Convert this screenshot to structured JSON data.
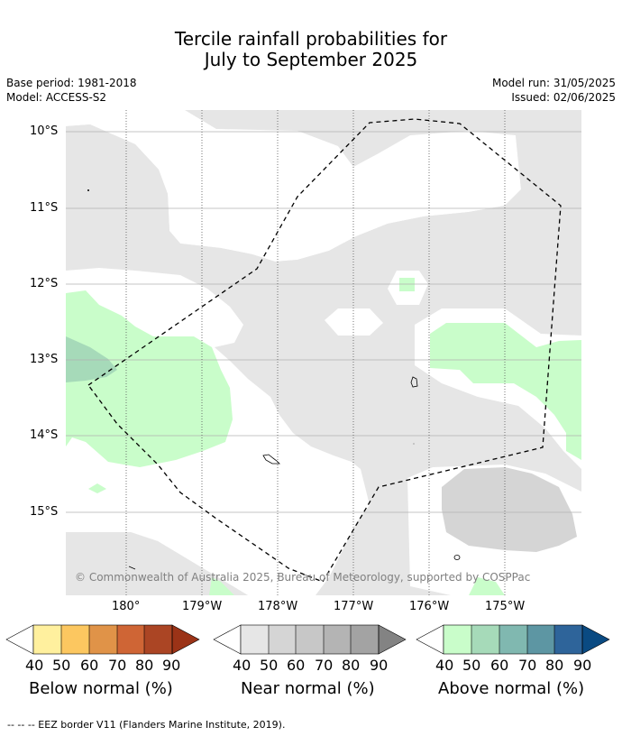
{
  "header": {
    "title_line1": "Tercile rainfall probabilities for",
    "title_line2": "July to September 2025",
    "base_period": "Base period: 1981-2018",
    "model": "Model: ACCESS-S2",
    "model_run": "Model run: 31/05/2025",
    "issued": "Issued: 02/06/2025"
  },
  "map": {
    "lat_labels": [
      "10°S",
      "11°S",
      "12°S",
      "13°S",
      "14°S",
      "15°S"
    ],
    "lon_labels": [
      "180°",
      "179°W",
      "178°W",
      "177°W",
      "176°W",
      "175°W"
    ],
    "copyright": "© Commonwealth of Australia 2025, Bureau of Meteorology, supported by COSPPac"
  },
  "legends": [
    {
      "caption": "Below normal (%)",
      "ticks": [
        "40",
        "50",
        "60",
        "70",
        "80",
        "90"
      ],
      "colors": [
        "#fff09e",
        "#fcc760",
        "#e09348",
        "#cf6535",
        "#ab4524",
        "#9b3317"
      ]
    },
    {
      "caption": "Near normal (%)",
      "ticks": [
        "40",
        "50",
        "60",
        "70",
        "80",
        "90"
      ],
      "colors": [
        "#e6e6e6",
        "#d5d5d5",
        "#c7c7c7",
        "#b4b4b4",
        "#a3a3a3",
        "#838383"
      ]
    },
    {
      "caption": "Above normal (%)",
      "ticks": [
        "40",
        "50",
        "60",
        "70",
        "80",
        "90"
      ],
      "colors": [
        "#c9fdca",
        "#a6dab9",
        "#80b8b0",
        "#5d96a3",
        "#2e649a",
        "#0a4a82"
      ]
    }
  ],
  "footer": "--  --  -- EEZ border V11 (Flanders Marine Institute, 2019)."
}
